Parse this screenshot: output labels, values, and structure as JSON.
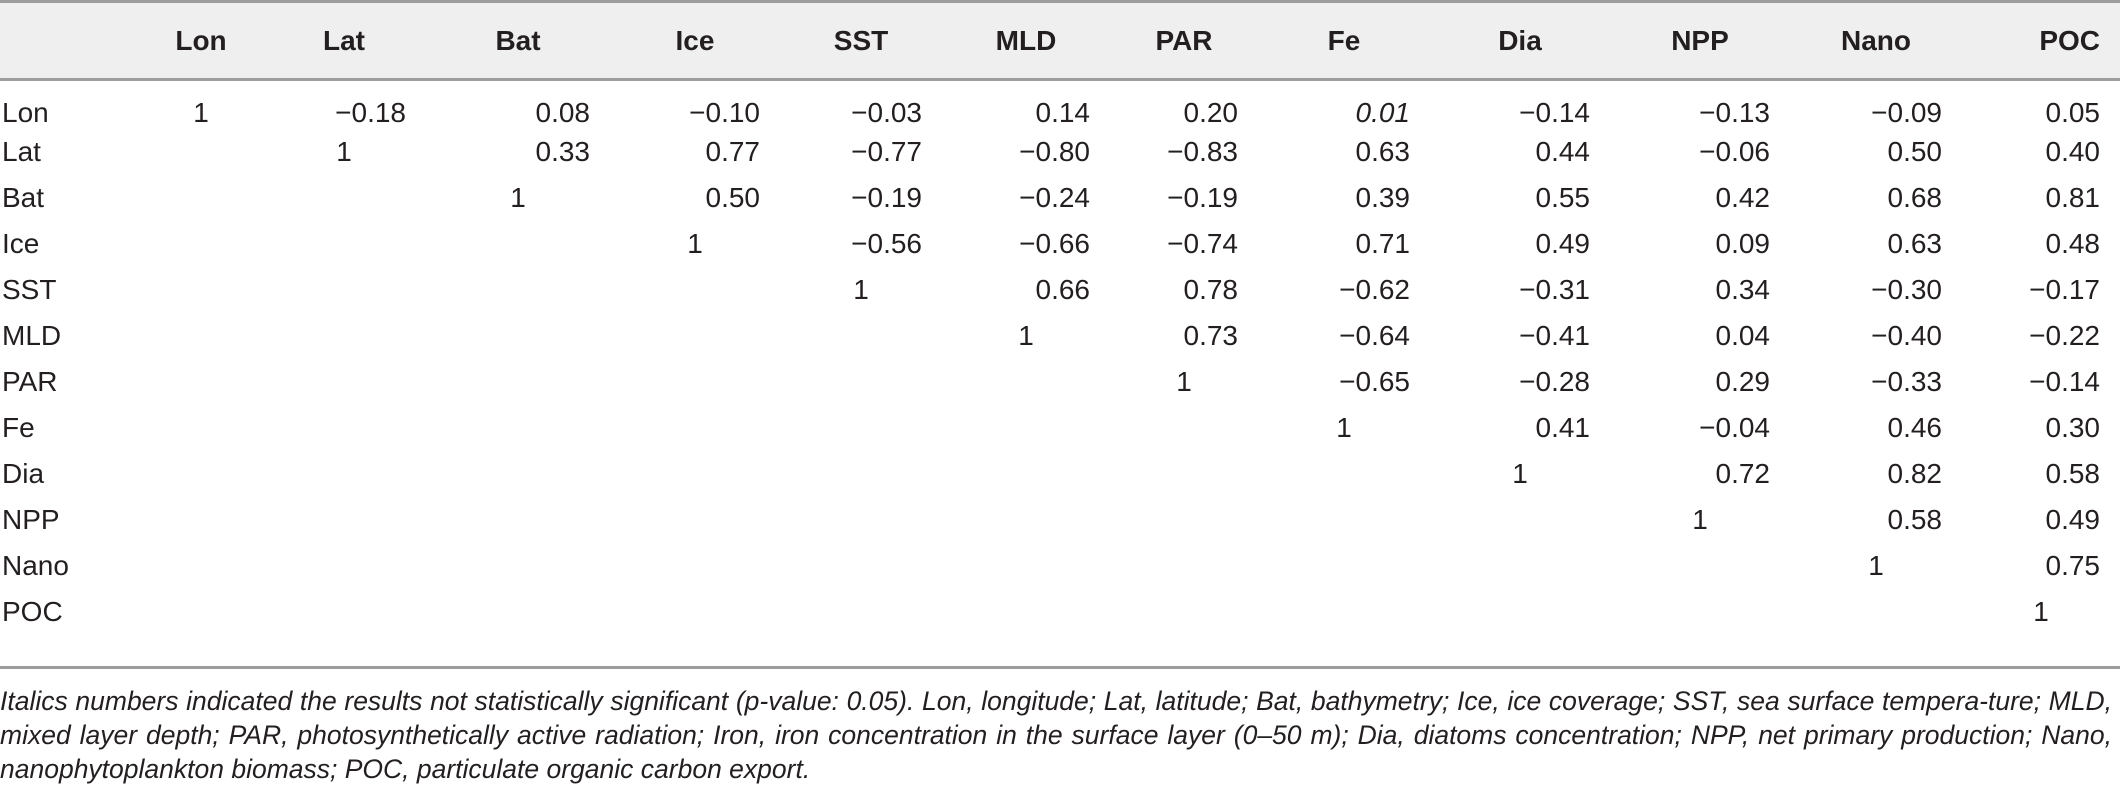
{
  "table": {
    "columns": [
      "",
      "Lon",
      "Lat",
      "Bat",
      "Ice",
      "SST",
      "MLD",
      "PAR",
      "Fe",
      "Dia",
      "NPP",
      "Nano",
      "POC"
    ],
    "rows": [
      {
        "label": "Lon",
        "cells": [
          "1",
          "−0.18",
          "0.08",
          "−0.10",
          "−0.03",
          "0.14",
          "0.20",
          "0.01",
          "−0.14",
          "−0.13",
          "−0.09",
          "0.05"
        ],
        "italic": [
          7
        ]
      },
      {
        "label": "Lat",
        "cells": [
          "",
          "1",
          "0.33",
          "0.77",
          "−0.77",
          "−0.80",
          "−0.83",
          "0.63",
          "0.44",
          "−0.06",
          "0.50",
          "0.40"
        ],
        "italic": []
      },
      {
        "label": "Bat",
        "cells": [
          "",
          "",
          "1",
          "0.50",
          "−0.19",
          "−0.24",
          "−0.19",
          "0.39",
          "0.55",
          "0.42",
          "0.68",
          "0.81"
        ],
        "italic": []
      },
      {
        "label": "Ice",
        "cells": [
          "",
          "",
          "",
          "1",
          "−0.56",
          "−0.66",
          "−0.74",
          "0.71",
          "0.49",
          "0.09",
          "0.63",
          "0.48"
        ],
        "italic": []
      },
      {
        "label": "SST",
        "cells": [
          "",
          "",
          "",
          "",
          "1",
          "0.66",
          "0.78",
          "−0.62",
          "−0.31",
          "0.34",
          "−0.30",
          "−0.17"
        ],
        "italic": []
      },
      {
        "label": "MLD",
        "cells": [
          "",
          "",
          "",
          "",
          "",
          "1",
          "0.73",
          "−0.64",
          "−0.41",
          "0.04",
          "−0.40",
          "−0.22"
        ],
        "italic": []
      },
      {
        "label": "PAR",
        "cells": [
          "",
          "",
          "",
          "",
          "",
          "",
          "1",
          "−0.65",
          "−0.28",
          "0.29",
          "−0.33",
          "−0.14"
        ],
        "italic": []
      },
      {
        "label": "Fe",
        "cells": [
          "",
          "",
          "",
          "",
          "",
          "",
          "",
          "1",
          "0.41",
          "−0.04",
          "0.46",
          "0.30"
        ],
        "italic": []
      },
      {
        "label": "Dia",
        "cells": [
          "",
          "",
          "",
          "",
          "",
          "",
          "",
          "",
          "1",
          "0.72",
          "0.82",
          "0.58"
        ],
        "italic": []
      },
      {
        "label": "NPP",
        "cells": [
          "",
          "",
          "",
          "",
          "",
          "",
          "",
          "",
          "",
          "1",
          "0.58",
          "0.49"
        ],
        "italic": []
      },
      {
        "label": "Nano",
        "cells": [
          "",
          "",
          "",
          "",
          "",
          "",
          "",
          "",
          "",
          "",
          "1",
          "0.75"
        ],
        "italic": []
      },
      {
        "label": "POC",
        "cells": [
          "",
          "",
          "",
          "",
          "",
          "",
          "",
          "",
          "",
          "",
          "",
          "1"
        ],
        "italic": []
      }
    ]
  },
  "footnote": "Italics numbers indicated the results not statistically significant (p-value: 0.05). Lon, longitude; Lat, latitude; Bat, bathymetry; Ice, ice coverage; SST, sea surface tempera-ture; MLD, mixed layer depth; PAR, photosynthetically active radiation; Iron, iron concentration in the surface layer (0–50 m); Dia, diatoms concentration; NPP, net primary production; Nano, nanophytoplankton biomass; POC, particulate organic carbon export.",
  "colors": {
    "header_bg": "#efefef",
    "rule": "#9d9d9d",
    "text": "#231f20"
  }
}
